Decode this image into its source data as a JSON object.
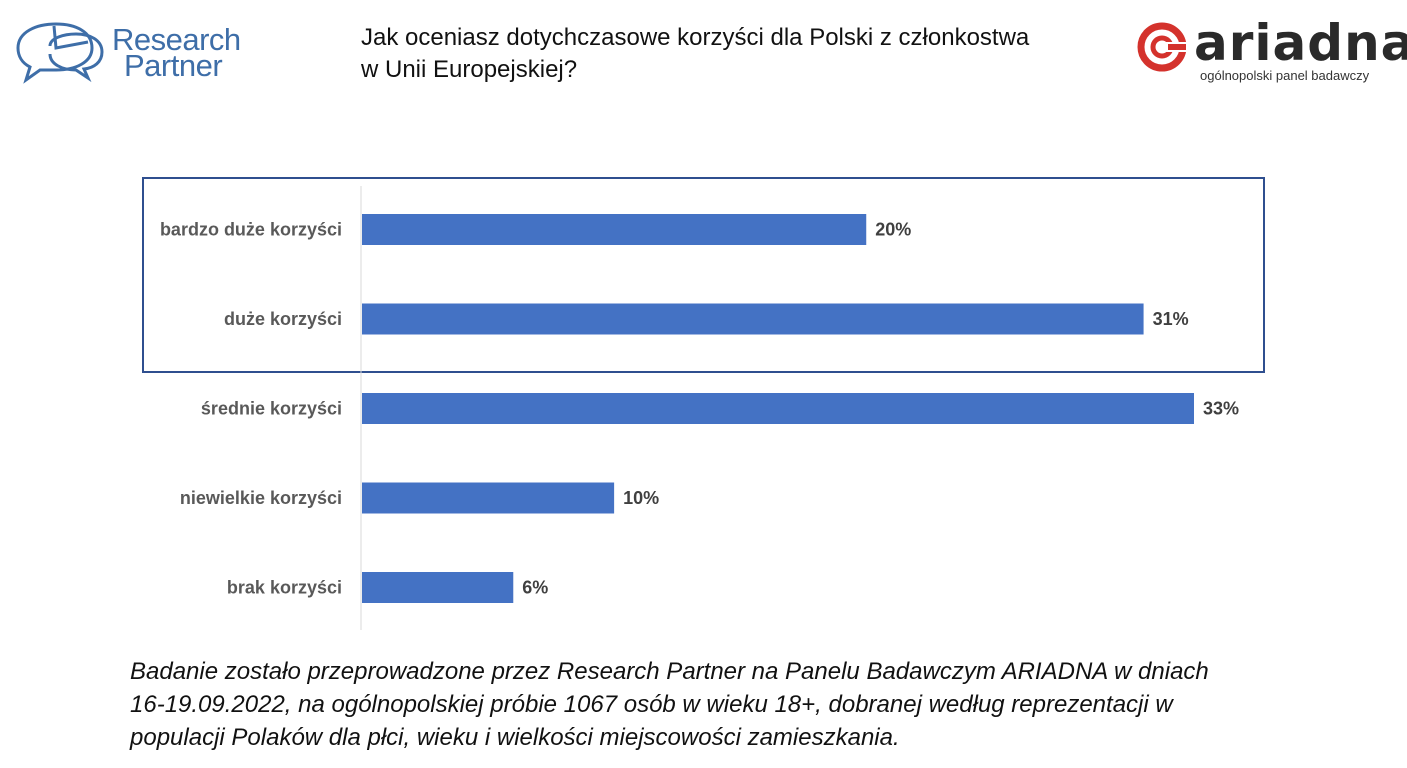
{
  "header": {
    "research_partner": {
      "line1": "Research",
      "line2": "Partner"
    },
    "title_line1": "Jak oceniasz dotychczasowe korzyści dla Polski z członkostwa",
    "title_line2": "w Unii Europejskiej?",
    "ariadna": {
      "wordmark": "ariadna",
      "tagline": "ogólnopolski panel badawczy"
    }
  },
  "colors": {
    "bar": "#4472c4",
    "highlight_frame": "#2f4f8f",
    "rp_blue": "#3e6ea8",
    "ariadna_red": "#d4322c"
  },
  "chart_data": {
    "type": "bar",
    "orientation": "horizontal",
    "categories": [
      "bardzo duże korzyści",
      "duże korzyści",
      "średnie korzyści",
      "niewielkie korzyści",
      "brak korzyści"
    ],
    "values": [
      20,
      31,
      33,
      10,
      6
    ],
    "value_labels": [
      "20%",
      "31%",
      "33%",
      "10%",
      "6%"
    ],
    "unit": "%",
    "highlighted_categories": [
      "bardzo duże korzyści",
      "duże korzyści"
    ],
    "xlim": [
      0,
      33
    ],
    "grid": false,
    "legend": "none"
  },
  "footnote": {
    "line1": "Badanie zostało przeprowadzone przez Research Partner na Panelu Badawczym ARIADNA w dniach",
    "line2": "16-19.09.2022, na ogólnopolskiej próbie 1067 osób w wieku 18+, dobranej według reprezentacji w",
    "line3": "populacji Polaków dla płci, wieku i wielkości miejscowości zamieszkania."
  }
}
